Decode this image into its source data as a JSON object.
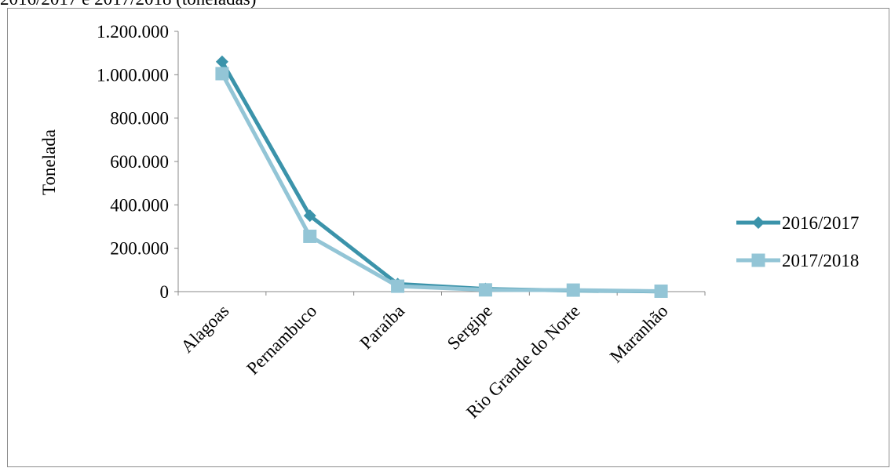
{
  "caption": "2016/2017 e 2017/2018 (toneladas)",
  "chart_data": {
    "type": "line",
    "title": "",
    "ylabel": "Tonelada",
    "xlabel": "",
    "categories": [
      "Alagoas",
      "Pernambuco",
      "Paraíba",
      "Sergipe",
      "Rio Grande do Norte",
      "Maranhão"
    ],
    "ylim": [
      0,
      1200000
    ],
    "yticks": [
      0,
      200000,
      400000,
      600000,
      800000,
      1000000,
      1200000
    ],
    "ytick_labels": [
      "0",
      "200.000",
      "400.000",
      "600.000",
      "800.000",
      "1.000.000",
      "1.200.000"
    ],
    "grid": false,
    "legend_position": "right",
    "series": [
      {
        "name": "2016/2017",
        "color": "#3b93aa",
        "marker": "diamond",
        "values": [
          1060000,
          350000,
          35000,
          12000,
          5000,
          1000
        ]
      },
      {
        "name": "2017/2018",
        "color": "#93c5d6",
        "marker": "square",
        "values": [
          1005000,
          255000,
          25000,
          8000,
          7000,
          2000
        ]
      }
    ]
  }
}
